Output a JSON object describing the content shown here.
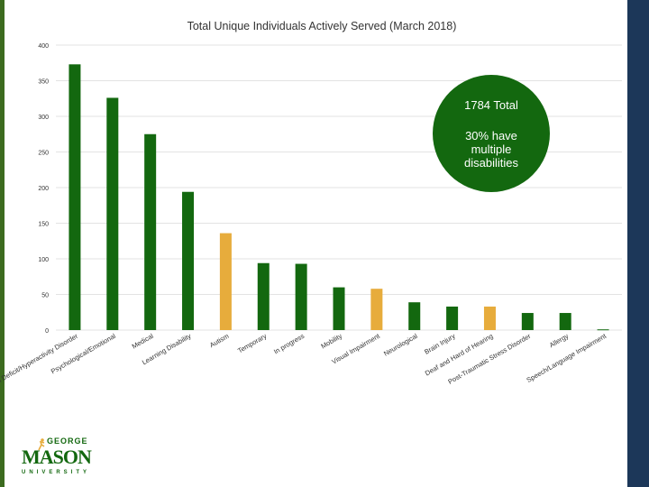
{
  "colors": {
    "green": "#13680f",
    "gold": "#e7ac3c",
    "navy": "#1c3759",
    "sidebar_green": "#3c6b1f",
    "text": "#333333",
    "grid": "#e3e3e3"
  },
  "callout": {
    "total": "1784 Total",
    "note": "30%  have\nmultiple\ndisabilities"
  },
  "logo": {
    "line1": "GEORGE",
    "line2": "MASON",
    "line3": "UNIVERSITY",
    "icon": "running-figure-icon"
  },
  "chart_data": {
    "type": "bar",
    "title": "Total Unique Individuals Actively Served (March 2018)",
    "xlabel": "",
    "ylabel": "",
    "ylim": [
      0,
      400
    ],
    "yticks": [
      0,
      50,
      100,
      150,
      200,
      250,
      300,
      350,
      400
    ],
    "grid": true,
    "legend": "none",
    "categories": [
      "Attention Deficit/Hyperactivity Disorder",
      "Psychological/Emotional",
      "Medical",
      "Learning Disability",
      "Autism",
      "Temporary",
      "In progress",
      "Mobility",
      "Visual Impairment",
      "Neurological",
      "Brain Injury",
      "Deaf and Hard of Hearing",
      "Post-Traumatic Stress Disorder",
      "Allergy",
      "Speech/Language Impairment"
    ],
    "values": [
      373,
      326,
      275,
      194,
      136,
      94,
      93,
      60,
      58,
      39,
      33,
      33,
      24,
      24,
      1
    ],
    "bar_colors": [
      "green",
      "green",
      "green",
      "green",
      "gold",
      "green",
      "green",
      "green",
      "gold",
      "green",
      "green",
      "gold",
      "green",
      "green",
      "green"
    ]
  }
}
